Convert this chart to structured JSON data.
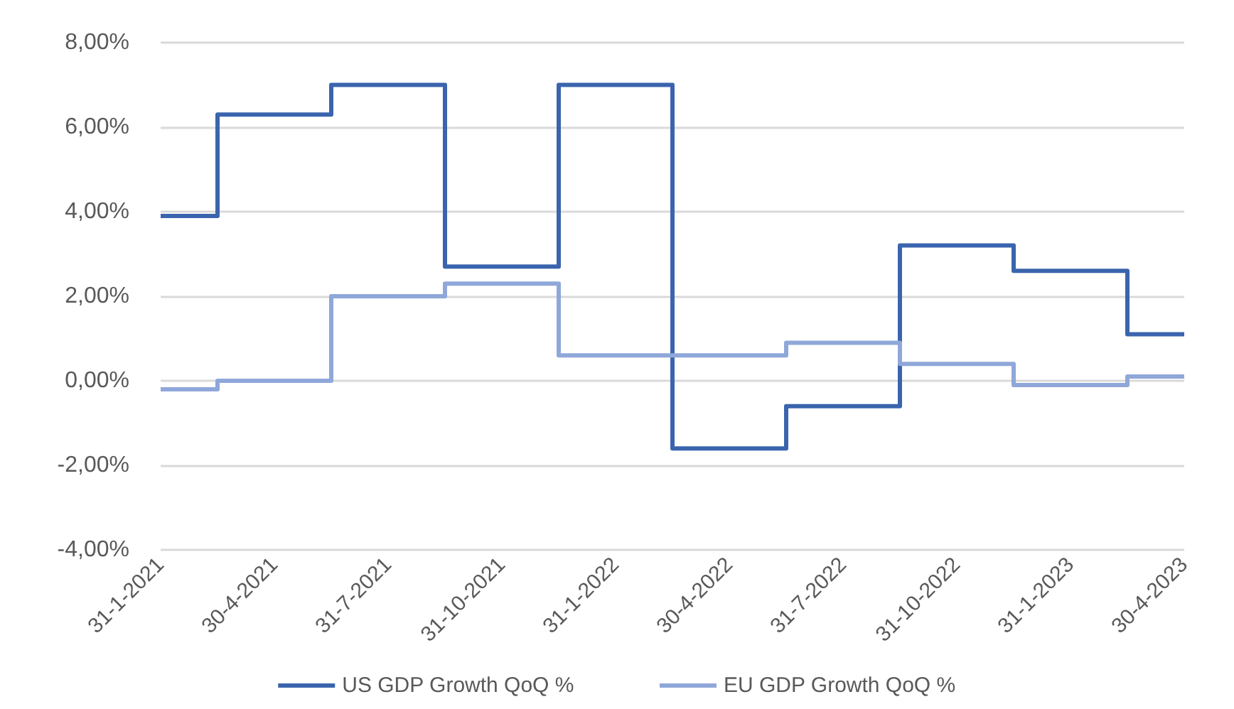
{
  "chart_data": {
    "type": "step",
    "categories": [
      "31-1-2021",
      "30-4-2021",
      "31-7-2021",
      "31-10-2021",
      "31-1-2022",
      "30-4-2022",
      "31-7-2022",
      "31-10-2022",
      "31-1-2023",
      "30-4-2023"
    ],
    "series": [
      {
        "name": "US GDP Growth QoQ %",
        "color": "#3a64ad",
        "values": [
          3.9,
          6.3,
          7.0,
          2.7,
          7.0,
          -1.6,
          -0.6,
          3.2,
          2.6,
          1.1
        ]
      },
      {
        "name": "EU GDP Growth QoQ %",
        "color": "#8fa7d9",
        "values": [
          -0.2,
          0.0,
          2.0,
          2.3,
          0.6,
          0.6,
          0.9,
          0.4,
          -0.1,
          0.1
        ]
      }
    ],
    "ylim": [
      -4,
      8
    ],
    "yticks": [
      {
        "value": -4,
        "label": "-4,00%"
      },
      {
        "value": -2,
        "label": "-2,00%"
      },
      {
        "value": 0,
        "label": "0,00%"
      },
      {
        "value": 2,
        "label": "2,00%"
      },
      {
        "value": 4,
        "label": "4,00%"
      },
      {
        "value": 6,
        "label": "6,00%"
      },
      {
        "value": 8,
        "label": "8,00%"
      }
    ],
    "grid": "y",
    "legend": "bottom",
    "marker": "none",
    "line_style": "solid"
  }
}
